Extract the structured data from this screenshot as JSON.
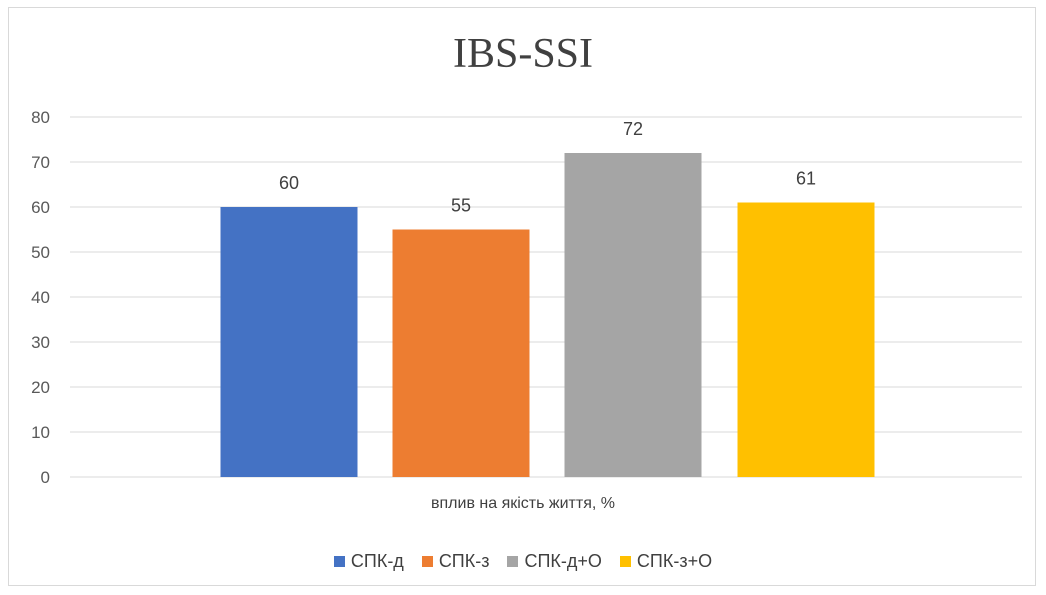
{
  "chart_data": {
    "type": "bar",
    "title": "IBS-SSI",
    "xlabel": "вплив на якість життя, %",
    "ylabel": "",
    "ylim": [
      0,
      80
    ],
    "yticks": [
      0,
      10,
      20,
      30,
      40,
      50,
      60,
      70,
      80
    ],
    "grid": true,
    "legend_position": "bottom",
    "series": [
      {
        "name": "СПК-д",
        "values": [
          60
        ],
        "color": "#4472C4"
      },
      {
        "name": "СПК-з",
        "values": [
          55
        ],
        "color": "#ED7D31"
      },
      {
        "name": "СПК-д+О",
        "values": [
          72
        ],
        "color": "#A5A5A5"
      },
      {
        "name": "СПК-з+О",
        "values": [
          61
        ],
        "color": "#FFC000"
      }
    ]
  }
}
